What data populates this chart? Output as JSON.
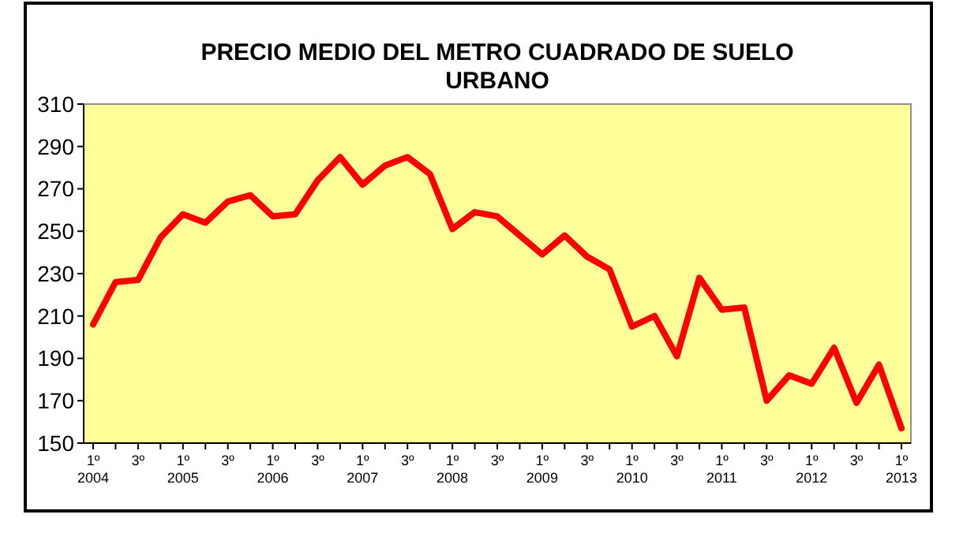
{
  "chart_data": {
    "type": "line",
    "title": "PRECIO MEDIO DEL METRO CUADRADO DE SUELO\nURBANO",
    "categories": [
      "1º\n2004",
      null,
      "3º",
      null,
      "1º\n2005",
      null,
      "3º",
      null,
      "1º\n2006",
      null,
      "3º",
      null,
      "1º\n2007",
      null,
      "3º",
      null,
      "1º\n2008",
      null,
      "3º",
      null,
      "1º\n2009",
      null,
      "3º",
      null,
      "1º\n2010",
      null,
      "3º",
      null,
      "1º\n2011",
      null,
      "3º",
      null,
      "1º\n2012",
      null,
      "3º",
      null,
      "1º\n2013"
    ],
    "series": [
      {
        "color": "#ff0000",
        "values": [
          206,
          226,
          227,
          247,
          258,
          254,
          264,
          267,
          257,
          258,
          274,
          285,
          272,
          281,
          285,
          277,
          251,
          259,
          257,
          248,
          239,
          248,
          238,
          232,
          205,
          210,
          191,
          228,
          213,
          214,
          170,
          182,
          178,
          195,
          169,
          187,
          157
        ]
      }
    ],
    "ylim": [
      150,
      310
    ],
    "yticks": [
      150,
      170,
      190,
      210,
      230,
      250,
      270,
      290,
      310
    ],
    "marker": "none",
    "line_style": "solid"
  }
}
